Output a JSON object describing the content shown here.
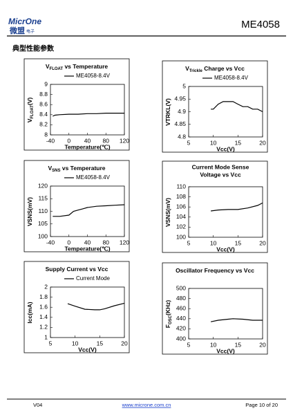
{
  "header": {
    "logo_latin": "MicrOne",
    "logo_cn": "微盟",
    "logo_cn_small": "电子",
    "part": "ME4058"
  },
  "section_title": "典型性能参数",
  "chart_data": [
    {
      "type": "line",
      "title": [
        "V",
        "FLOAT",
        " vs Temperature"
      ],
      "xlabel": "Temperature(℃)",
      "ylabel": [
        "V",
        "FLOAT",
        "(V)"
      ],
      "x": [
        -35,
        -30,
        -20,
        0,
        20,
        40,
        60,
        80,
        100,
        120
      ],
      "series": [
        {
          "name": "ME4058-8.4V",
          "color": "#000000",
          "values": [
            8.37,
            8.39,
            8.4,
            8.41,
            8.41,
            8.42,
            8.42,
            8.43,
            8.43,
            8.43
          ]
        }
      ],
      "xlim": [
        -40,
        120
      ],
      "xticks": [
        -40,
        0,
        40,
        80,
        120
      ],
      "ylim": [
        8,
        9
      ],
      "yticks": [
        8,
        8.2,
        8.4,
        8.6,
        8.8,
        9
      ]
    },
    {
      "type": "line",
      "title": [
        "V",
        "Trickle",
        " Charge vs Vcc"
      ],
      "xlabel": "Vcc(V)",
      "ylabel": [
        "VTRKL(V)"
      ],
      "x": [
        9.5,
        10,
        11,
        12,
        13,
        14,
        15,
        16,
        17,
        18,
        19,
        20
      ],
      "series": [
        {
          "name": "ME4058-8.4V",
          "color": "#000000",
          "values": [
            4.91,
            4.91,
            4.93,
            4.94,
            4.94,
            4.94,
            4.93,
            4.92,
            4.92,
            4.91,
            4.91,
            4.9
          ]
        }
      ],
      "xlim": [
        5,
        20
      ],
      "xticks": [
        5,
        10,
        15,
        20
      ],
      "ylim": [
        4.8,
        5
      ],
      "yticks": [
        4.8,
        4.85,
        4.9,
        4.95,
        5
      ]
    },
    {
      "type": "line",
      "title": [
        "V",
        "SNS",
        " vs Temperature"
      ],
      "xlabel": "Temperature(℃)",
      "ylabel": [
        "VSNS(mV)"
      ],
      "x": [
        -35,
        -20,
        0,
        10,
        20,
        30,
        40,
        60,
        80,
        100,
        120
      ],
      "series": [
        {
          "name": "ME4058-8.4V",
          "color": "#000000",
          "values": [
            108,
            108,
            108.5,
            110,
            110.5,
            111,
            111.5,
            112,
            112.2,
            112.4,
            112.6
          ]
        }
      ],
      "xlim": [
        -40,
        120
      ],
      "xticks": [
        -40,
        0,
        40,
        80,
        120
      ],
      "ylim": [
        100,
        120
      ],
      "yticks": [
        100,
        105,
        110,
        115,
        120
      ]
    },
    {
      "type": "line",
      "title_lines": [
        "Current Mode Sense",
        "Voltage vs Vcc"
      ],
      "xlabel": "Vcc(V)",
      "ylabel": [
        "VSNS(mV)"
      ],
      "x": [
        9.5,
        11,
        13,
        15,
        17,
        19,
        20
      ],
      "series": [
        {
          "color": "#000000",
          "values": [
            105.2,
            105.4,
            105.5,
            105.5,
            105.8,
            106.3,
            106.8
          ]
        }
      ],
      "xlim": [
        5,
        20
      ],
      "xticks": [
        5,
        10,
        15,
        20
      ],
      "ylim": [
        100,
        110
      ],
      "yticks": [
        100,
        102,
        104,
        106,
        108,
        110
      ]
    },
    {
      "type": "line",
      "title": [
        "Supply Current vs Vcc"
      ],
      "xlabel": "Vcc(V)",
      "ylabel": [
        "Icc(mA)"
      ],
      "x": [
        8.5,
        10,
        12,
        14,
        15,
        16,
        18,
        20
      ],
      "series": [
        {
          "name": "Current Mode",
          "color": "#000000",
          "values": [
            1.67,
            1.62,
            1.56,
            1.55,
            1.55,
            1.57,
            1.63,
            1.68
          ]
        }
      ],
      "xlim": [
        5,
        20
      ],
      "xticks": [
        5,
        10,
        15,
        20
      ],
      "ylim": [
        1,
        2
      ],
      "yticks": [
        1,
        1.2,
        1.4,
        1.6,
        1.8,
        2
      ]
    },
    {
      "type": "line",
      "title": [
        "Oscillator Frequency vs Vcc"
      ],
      "xlabel": "Vcc(V)",
      "ylabel": [
        "F",
        "OSC",
        "(KHz)"
      ],
      "x": [
        9.5,
        11,
        13,
        14,
        16,
        18,
        20
      ],
      "series": [
        {
          "color": "#000000",
          "values": [
            434,
            437,
            439,
            440,
            439,
            437,
            437
          ]
        }
      ],
      "xlim": [
        5,
        20
      ],
      "xticks": [
        5,
        10,
        15,
        20
      ],
      "ylim": [
        400,
        500
      ],
      "yticks": [
        400,
        420,
        440,
        460,
        480,
        500
      ]
    }
  ],
  "footer": {
    "version": "V04",
    "url": "www.microne.com.cn",
    "page": "Page 10 of 20"
  }
}
